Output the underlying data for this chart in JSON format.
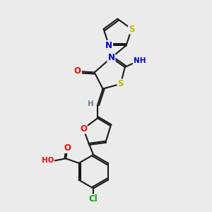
{
  "background_color": "#ebebeb",
  "atom_colors": {
    "C": "#000000",
    "N": "#0000cc",
    "O": "#ff0000",
    "S": "#bbbb00",
    "Cl": "#00aa00",
    "H": "#708090"
  },
  "bond_color": "#1a1a1a",
  "bond_width": 1.5,
  "font_size_atom": 8.5,
  "font_size_small": 7.5
}
